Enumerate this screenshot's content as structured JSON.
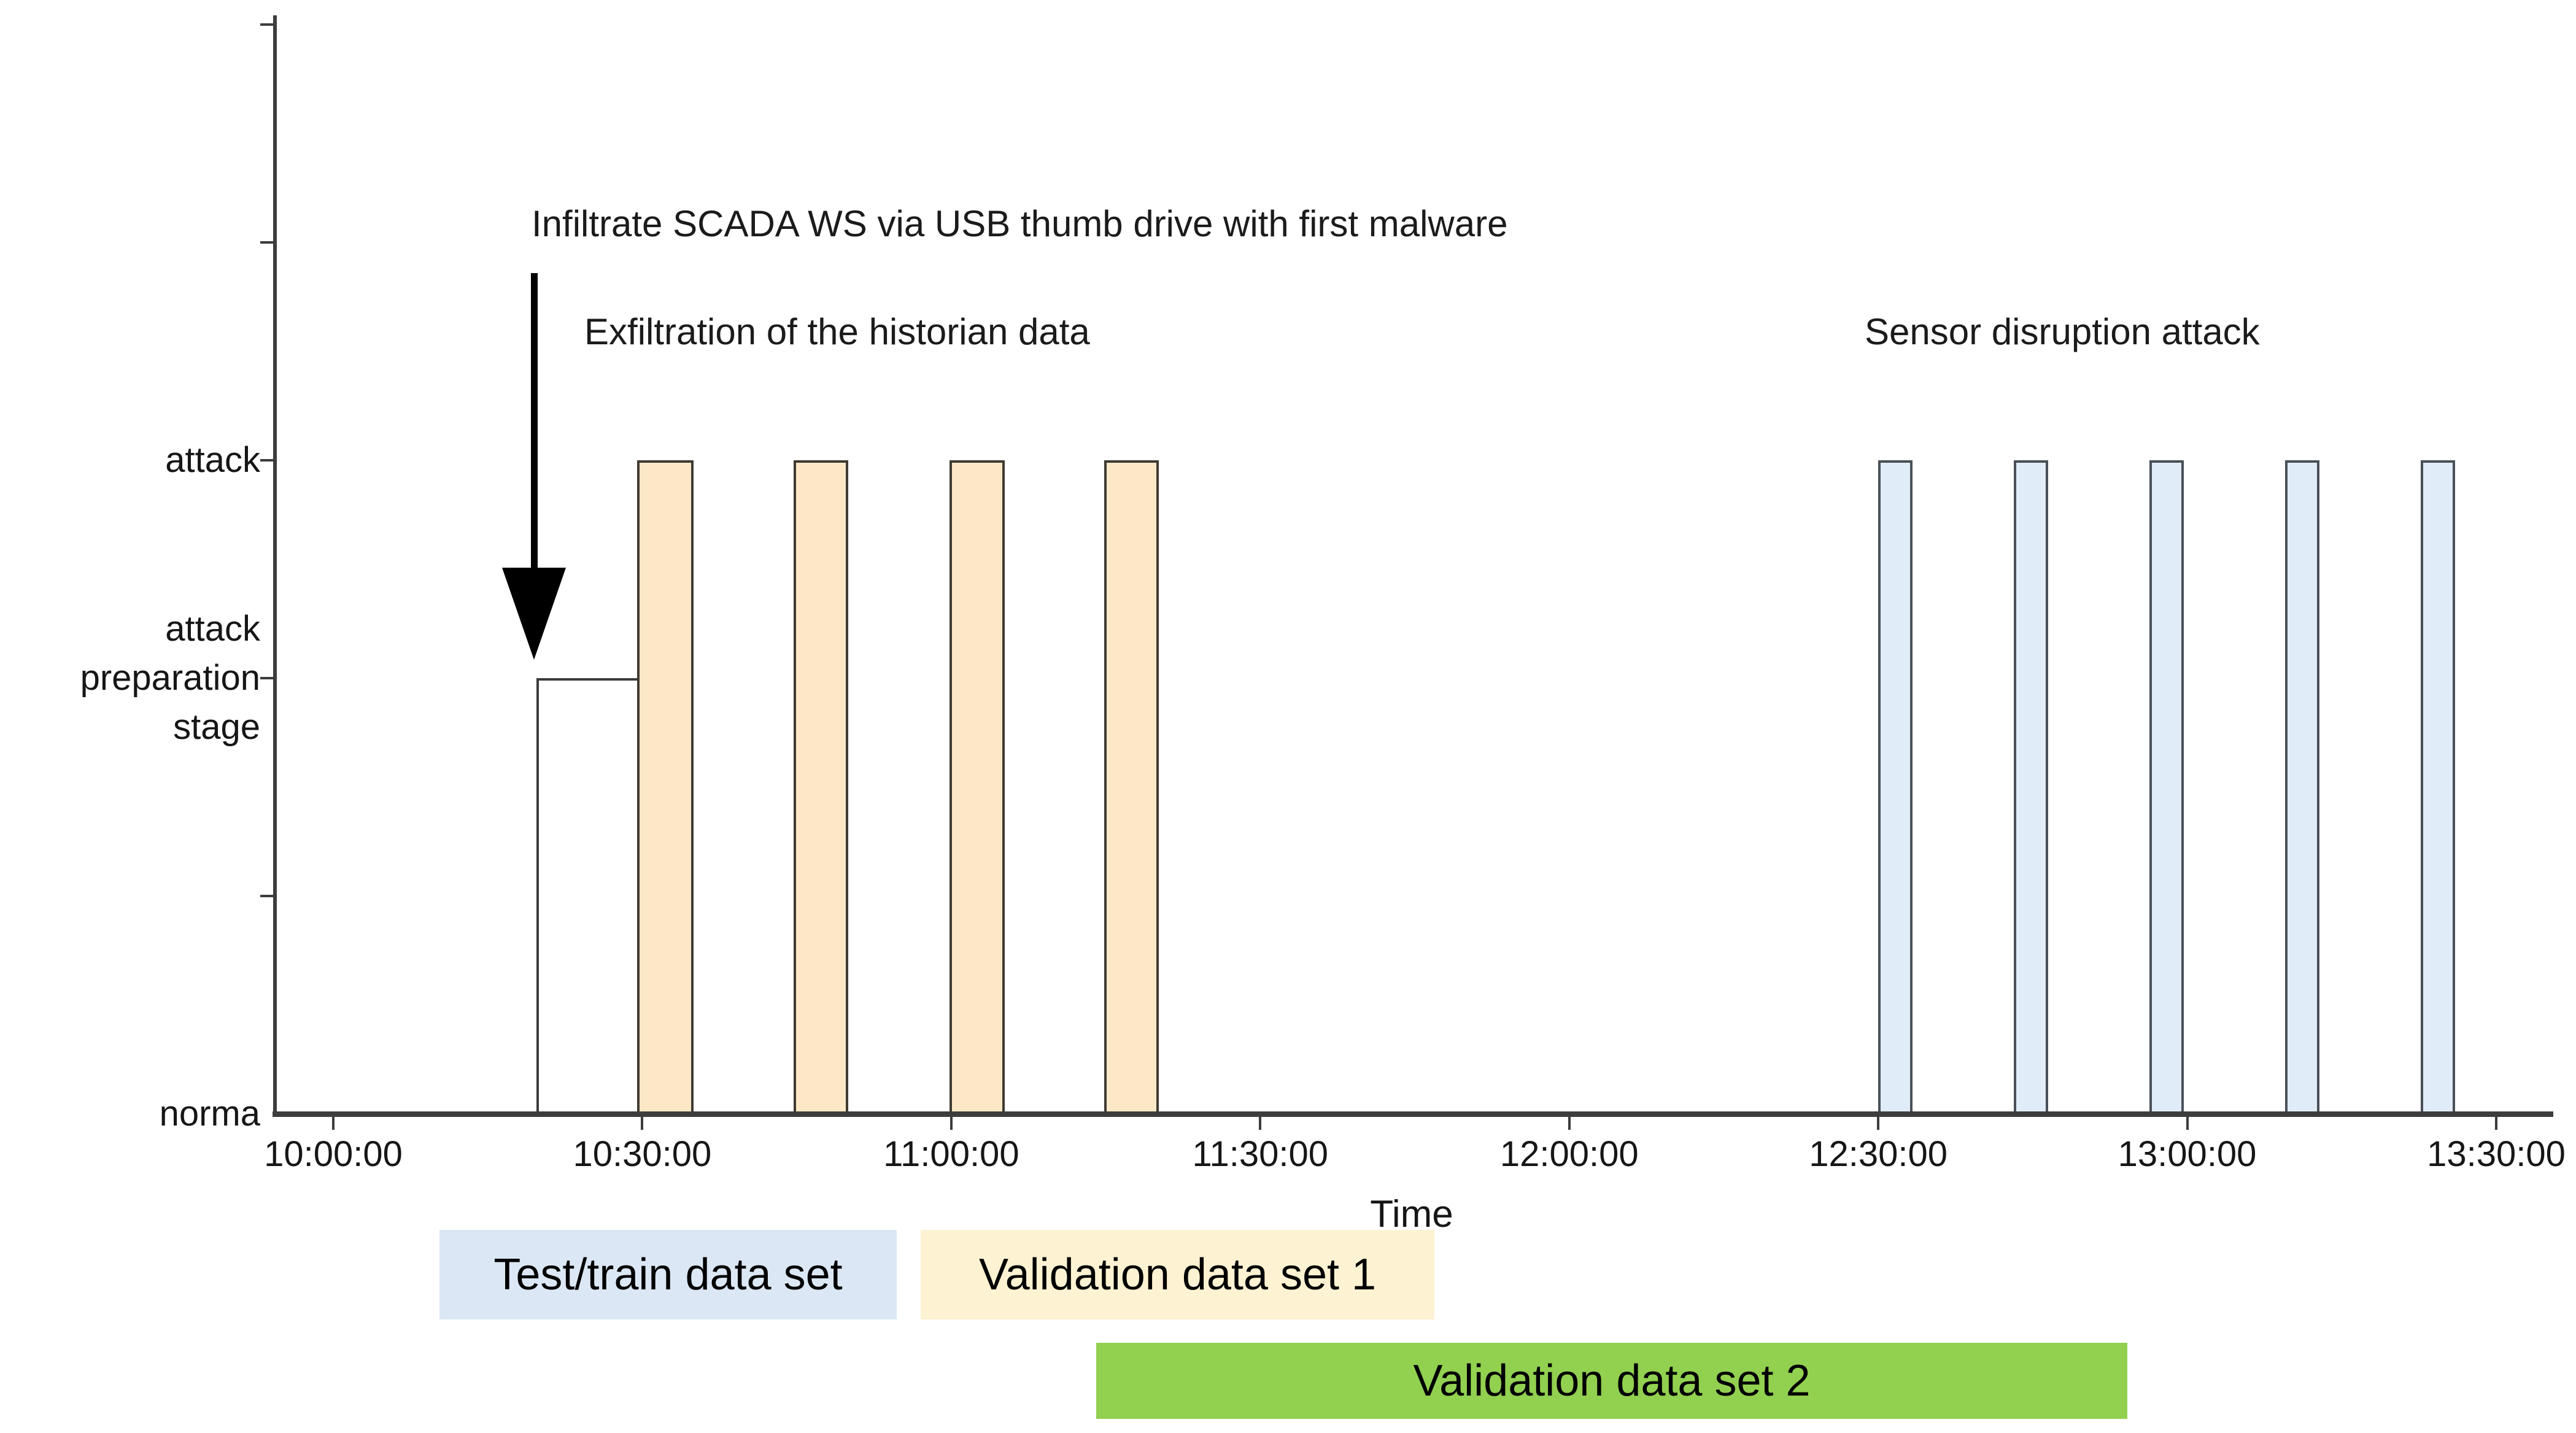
{
  "figure": {
    "background": "#ffffff",
    "axis_color": "#3c3c3c",
    "text_color": "#161616"
  },
  "chart_data": {
    "type": "area",
    "subtype": "step-timeline-of-attack-stages",
    "title": "",
    "xlabel": "Time",
    "ylabel": "",
    "x_range": [
      "10:00:00",
      "13:30:00"
    ],
    "x_ticks": [
      "10:00:00",
      "10:30:00",
      "11:00:00",
      "11:30:00",
      "12:00:00",
      "12:30:00",
      "13:00:00",
      "13:30:00"
    ],
    "ylim": [
      0,
      5
    ],
    "grid": false,
    "y_levels": [
      {
        "value": 0,
        "label": "norma"
      },
      {
        "value": 1,
        "label": ""
      },
      {
        "value": 2,
        "label": "attack\npreparation\nstage"
      },
      {
        "value": 3,
        "label": "attack"
      },
      {
        "value": 4,
        "label": ""
      },
      {
        "value": 5,
        "label": ""
      }
    ],
    "preparation_interval": {
      "start": "10:19:45",
      "end": "10:29:30",
      "level": 2,
      "line_color": "#3c3c3c"
    },
    "series": [
      {
        "name": "Exfiltration of the historian data",
        "level": 3,
        "fill": "#fce8c6",
        "edge": "#3f3a32",
        "intervals": [
          [
            "10:29:30",
            "10:35:00"
          ],
          [
            "10:44:40",
            "10:50:00"
          ],
          [
            "10:59:50",
            "11:05:10"
          ],
          [
            "11:14:50",
            "11:20:10"
          ]
        ]
      },
      {
        "name": "Sensor disruption attack",
        "level": 3,
        "fill": "#e0ecf7",
        "edge": "#4a5058",
        "intervals": [
          [
            "12:30:00",
            "12:33:20"
          ],
          [
            "12:43:10",
            "12:46:30"
          ],
          [
            "12:56:20",
            "12:59:40"
          ],
          [
            "13:09:30",
            "13:12:50"
          ],
          [
            "13:22:40",
            "13:26:00"
          ]
        ]
      }
    ],
    "annotations": [
      {
        "text": "Infiltrate SCADA WS via USB thumb drive with first malware",
        "arrow_time": "10:19:30"
      },
      {
        "text": "Exfiltration of the historian data"
      },
      {
        "text": "Sensor disruption attack"
      }
    ],
    "legend_position": "below-axis"
  },
  "axis": {
    "time_label": "Time"
  },
  "legend": [
    {
      "label": "Test/train data set",
      "color": "#dbe7f4"
    },
    {
      "label": "Validation data set 1",
      "color": "#fdf2d2"
    },
    {
      "label": "Validation data set 2",
      "color": "#92d050"
    }
  ]
}
